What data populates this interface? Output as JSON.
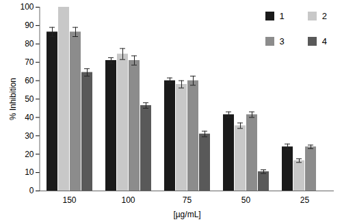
{
  "chart_data": {
    "type": "bar",
    "x_label": "[µg/mL]",
    "y_label": "% Inhibition",
    "categories": [
      150,
      100,
      75,
      50,
      25
    ],
    "series": [
      {
        "name": "1",
        "color": "#1a1a1a",
        "values": [
          86.5,
          71,
          60,
          41.5,
          24
        ],
        "errors": [
          2.5,
          1.5,
          1.5,
          1.5,
          1.5
        ]
      },
      {
        "name": "2",
        "color": "#c8c8c8",
        "values": [
          100,
          74.5,
          58,
          35.5,
          16.5
        ],
        "errors": [
          0,
          3,
          2,
          1.5,
          1
        ]
      },
      {
        "name": "3",
        "color": "#8c8c8c",
        "values": [
          86.5,
          71,
          60,
          41.5,
          24
        ],
        "errors": [
          2.5,
          2.5,
          2.5,
          1.5,
          1
        ]
      },
      {
        "name": "4",
        "color": "#595959",
        "values": [
          64.5,
          46.5,
          31,
          10.5,
          null
        ],
        "errors": [
          2,
          1.5,
          1.5,
          1,
          null
        ]
      }
    ],
    "ylim": [
      0,
      100
    ],
    "yticks": [
      0,
      10,
      20,
      30,
      40,
      50,
      60,
      70,
      80,
      90,
      100
    ],
    "grid": false,
    "legend": "upper right"
  }
}
